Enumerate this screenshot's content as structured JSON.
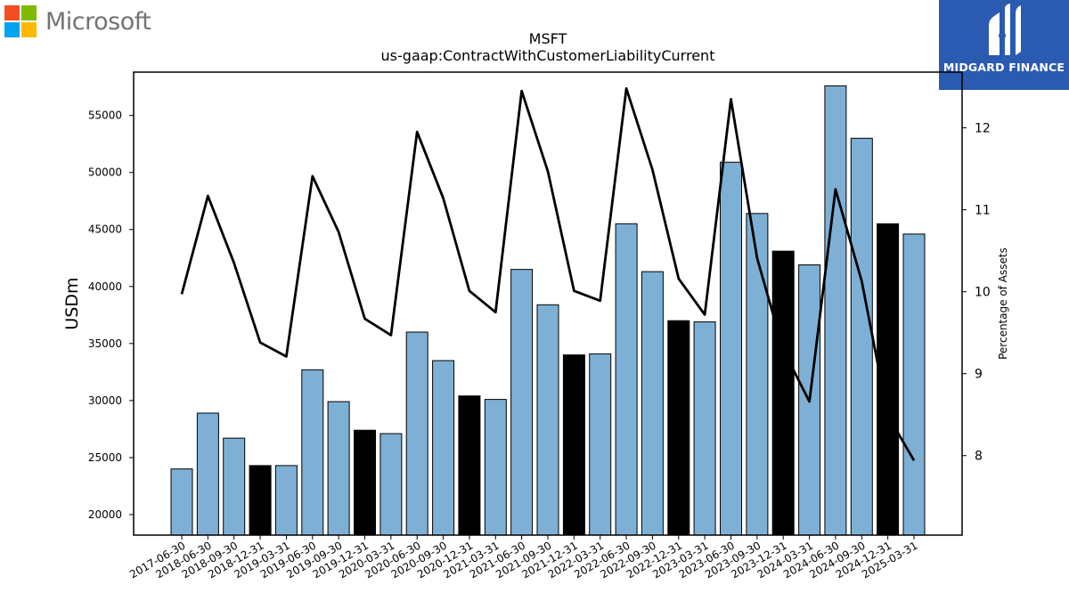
{
  "branding": {
    "company_logo_text": "Microsoft",
    "publisher_logo_text": "MIDGARD FINANCE",
    "ms_colors": [
      "#f25022",
      "#7fba00",
      "#00a4ef",
      "#ffb900"
    ],
    "publisher_bg": "#2b5bb0"
  },
  "chart_data": {
    "type": "bar",
    "title": "MSFT",
    "subtitle": "us-gaap:ContractWithCustomerLiabilityCurrent",
    "ylabel": "USDm",
    "y2label": "Percentage of Assets",
    "ylim": [
      18200,
      58800
    ],
    "y2lim": [
      7.03,
      12.68
    ],
    "yticks": [
      20000,
      25000,
      30000,
      35000,
      40000,
      45000,
      50000,
      55000
    ],
    "y2ticks": [
      8,
      9,
      10,
      11,
      12
    ],
    "colors": {
      "bar": "#7eb0d5",
      "bar_fiscal_q2": "#000000",
      "line": "#000000"
    },
    "categories": [
      "2017-06-30",
      "2018-06-30",
      "2018-09-30",
      "2018-12-31",
      "2019-03-31",
      "2019-06-30",
      "2019-09-30",
      "2019-12-31",
      "2020-03-31",
      "2020-06-30",
      "2020-09-30",
      "2020-12-31",
      "2021-03-31",
      "2021-06-30",
      "2021-09-30",
      "2021-12-31",
      "2022-03-31",
      "2022-06-30",
      "2022-09-30",
      "2022-12-31",
      "2023-03-31",
      "2023-06-30",
      "2023-09-30",
      "2023-12-31",
      "2024-03-31",
      "2024-06-30",
      "2024-09-30",
      "2024-12-31",
      "2025-03-31"
    ],
    "series": [
      {
        "type": "bar",
        "values": [
          24000,
          28900,
          26700,
          24300,
          24300,
          32700,
          29900,
          27400,
          27100,
          36000,
          33500,
          30400,
          30100,
          41500,
          38400,
          34000,
          34100,
          45500,
          41300,
          37000,
          36900,
          50900,
          46400,
          43100,
          41900,
          57600,
          53000,
          45500,
          44600
        ],
        "highlight": [
          false,
          false,
          false,
          true,
          false,
          false,
          false,
          true,
          false,
          false,
          false,
          true,
          false,
          false,
          false,
          true,
          false,
          false,
          false,
          true,
          false,
          false,
          false,
          true,
          false,
          false,
          false,
          true,
          false
        ]
      },
      {
        "type": "line",
        "axis": "right",
        "values": [
          9.97,
          11.17,
          10.35,
          9.38,
          9.21,
          11.41,
          10.73,
          9.67,
          9.47,
          11.95,
          11.14,
          10.01,
          9.75,
          12.45,
          11.47,
          10.01,
          9.89,
          12.48,
          11.49,
          10.16,
          9.72,
          12.35,
          10.41,
          9.29,
          8.66,
          11.25,
          10.13,
          8.49,
          7.94
        ]
      }
    ]
  }
}
